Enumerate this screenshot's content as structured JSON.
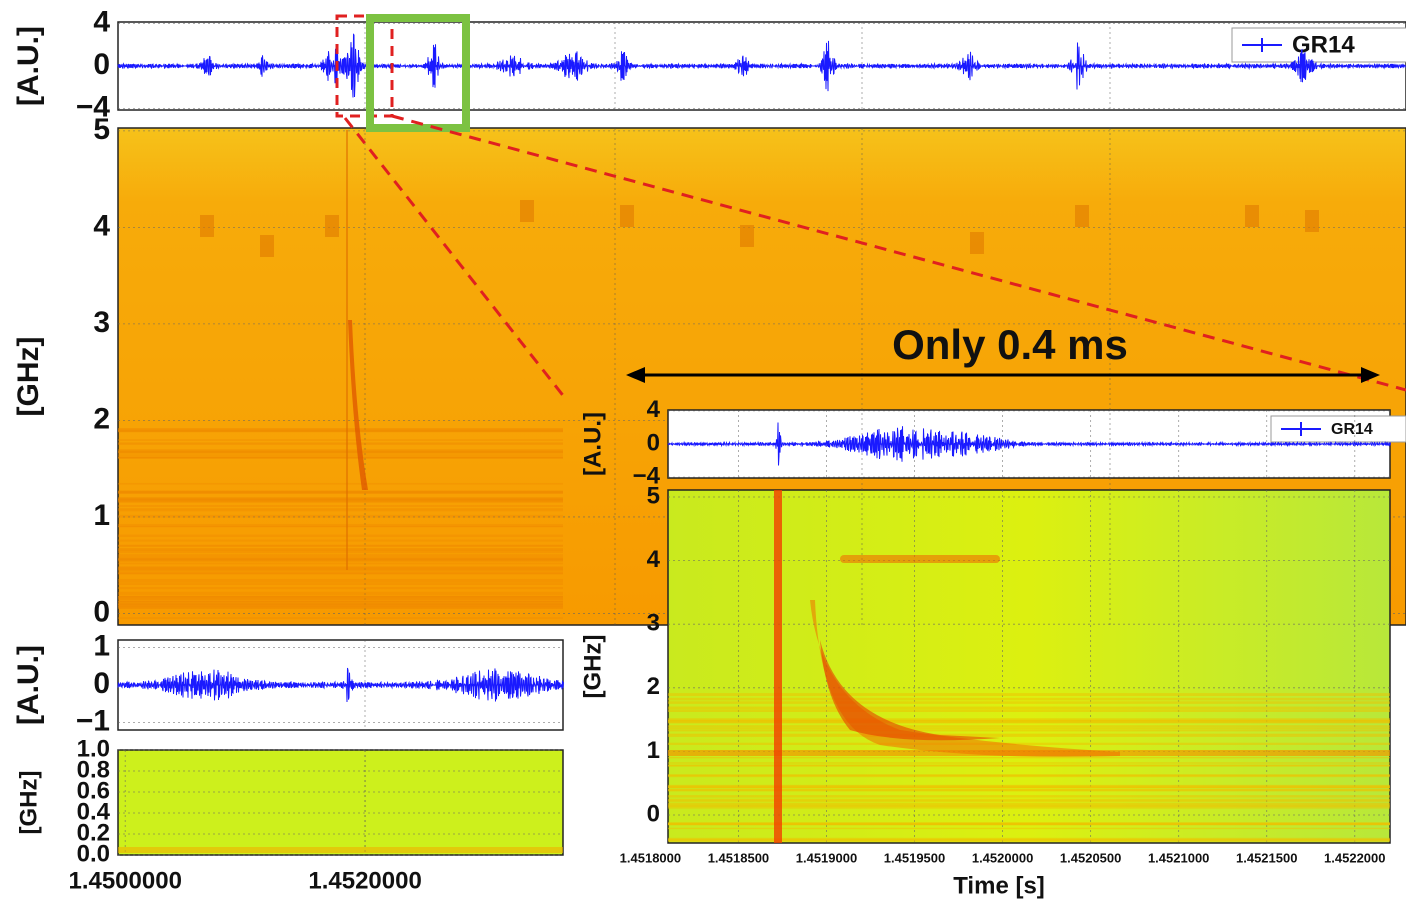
{
  "panels": {
    "overview_wave": {
      "ylabel": "[A.U.]",
      "ylim": [
        -4.15,
        4.15
      ],
      "yticks": [
        4,
        0,
        {
          "value": -4,
          "label": "−4"
        }
      ],
      "legend": "GR14"
    },
    "overview_spectrogram": {
      "ylabel": "[GHz]",
      "ylim": [
        -0.12,
        5.03
      ],
      "yticks": [
        0,
        1,
        2,
        3,
        4,
        5
      ]
    },
    "detail_wave": {
      "ylabel": "[A.U.]",
      "ylim": [
        -1.2,
        1.2
      ],
      "yticks": [
        1,
        0,
        {
          "value": -1,
          "label": "−1"
        }
      ]
    },
    "detail_spectrogram": {
      "ylabel": "[GHz]",
      "ylim": [
        0,
        1
      ],
      "yticks": [
        {
          "value": 0,
          "label": "0.0"
        },
        {
          "value": 0.2,
          "label": "0.2"
        },
        {
          "value": 0.4,
          "label": "0.4"
        },
        {
          "value": 0.6,
          "label": "0.6"
        },
        {
          "value": 0.8,
          "label": "0.8"
        },
        {
          "value": 1,
          "label": "1.0"
        }
      ],
      "xlim": [
        1.44994,
        1.45365
      ],
      "xticks": [
        {
          "value": 1.45,
          "label": "1.4500000"
        },
        {
          "value": 1.452,
          "label": "1.4520000"
        }
      ]
    },
    "zoom_wave": {
      "ylabel": "[A.U.]",
      "ylim": [
        -4.1,
        4.1
      ],
      "yticks": [
        4,
        0,
        {
          "value": -4,
          "label": "−4"
        }
      ],
      "legend": "GR14"
    },
    "zoom_spectrogram": {
      "ylabel": "[GHz]",
      "ylim": [
        -0.44,
        5.11
      ],
      "yticks": [
        0,
        1,
        2,
        3,
        4,
        5
      ],
      "xlim": [
        1.45181,
        1.45222
      ],
      "xticks": [
        {
          "value": 1.4518,
          "label": "1.4518000"
        },
        {
          "value": 1.45185,
          "label": "1.4518500"
        },
        {
          "value": 1.4519,
          "label": "1.4519000"
        },
        {
          "value": 1.45195,
          "label": "1.4519500"
        },
        {
          "value": 1.452,
          "label": "1.4520000"
        },
        {
          "value": 1.45205,
          "label": "1.4520500"
        },
        {
          "value": 1.4521,
          "label": "1.4521000"
        },
        {
          "value": 1.45215,
          "label": "1.4521500"
        },
        {
          "value": 1.4522,
          "label": "1.4522000"
        }
      ],
      "xlabel": "Time [s]"
    }
  },
  "annotation": "Only 0.4 ms"
}
